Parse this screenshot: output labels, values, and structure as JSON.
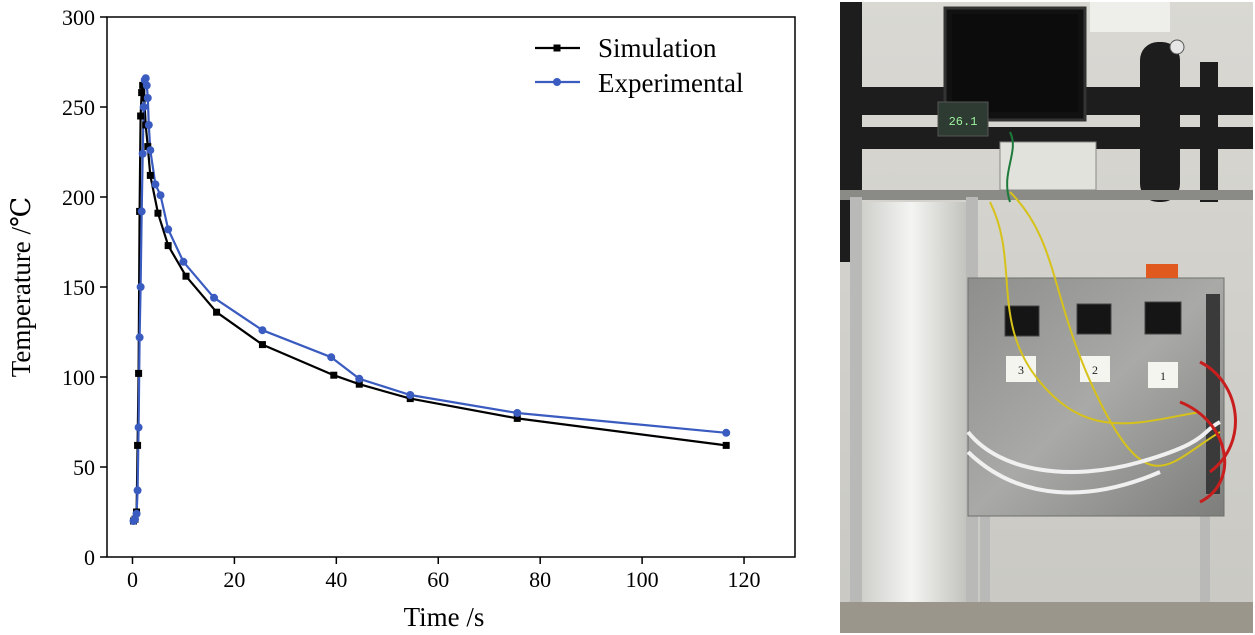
{
  "chart_data": {
    "type": "line",
    "title": "",
    "xlabel": "Time /s",
    "ylabel": "Temperature /℃",
    "xlim": [
      -5,
      130
    ],
    "ylim": [
      0,
      300
    ],
    "xticks": [
      0,
      20,
      40,
      60,
      80,
      100,
      120
    ],
    "yticks": [
      0,
      50,
      100,
      150,
      200,
      250,
      300
    ],
    "legend_position": "top-right",
    "grid": false,
    "series": [
      {
        "name": "Simulation",
        "color": "#000000",
        "marker": "square",
        "x": [
          0.2,
          0.5,
          0.8,
          1.0,
          1.2,
          1.4,
          1.6,
          1.8,
          2.0,
          2.3,
          2.6,
          3.0,
          3.5,
          5.0,
          7.0,
          10.5,
          16.5,
          25.5,
          39.5,
          44.5,
          54.5,
          75.5,
          116.5
        ],
        "y": [
          20,
          21,
          25,
          62,
          102,
          192,
          245,
          258,
          262,
          255,
          240,
          228,
          212,
          191,
          173,
          156,
          136,
          118,
          101,
          96,
          88,
          77,
          62
        ]
      },
      {
        "name": "Experimental",
        "color": "#3a5bbf",
        "marker": "circle",
        "x": [
          0.2,
          0.5,
          0.8,
          1.0,
          1.2,
          1.4,
          1.6,
          1.8,
          2.0,
          2.2,
          2.4,
          2.6,
          2.8,
          3.0,
          3.2,
          3.5,
          4.5,
          5.5,
          7.0,
          10.0,
          16.0,
          25.5,
          39.0,
          44.5,
          54.5,
          75.5,
          116.5
        ],
        "y": [
          20,
          21,
          24,
          37,
          72,
          122,
          150,
          192,
          224,
          250,
          265,
          266,
          262,
          255,
          240,
          226,
          207,
          201,
          182,
          164,
          144,
          126,
          111,
          99,
          90,
          80,
          69
        ]
      }
    ]
  },
  "photo": {
    "device_labels": [
      "3",
      "2",
      "1"
    ],
    "display_reading": "26.1"
  }
}
